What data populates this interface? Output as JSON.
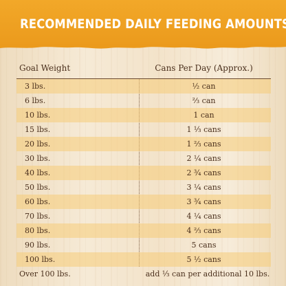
{
  "title": "RECOMMENDED DAILY FEEDING AMOUNTS:",
  "table": {
    "headers": [
      "Goal Weight",
      "Cans Per Day (Approx.)"
    ],
    "rows": [
      {
        "weight": "3 lbs.",
        "cans": "½ can"
      },
      {
        "weight": "6 lbs.",
        "cans": "⅔ can"
      },
      {
        "weight": "10 lbs.",
        "cans": "1 can"
      },
      {
        "weight": "15 lbs.",
        "cans": "1 ⅓ cans"
      },
      {
        "weight": "20 lbs.",
        "cans": "1 ⅔ cans"
      },
      {
        "weight": "30 lbs.",
        "cans": "2 ¼ cans"
      },
      {
        "weight": "40 lbs.",
        "cans": "2 ¾ cans"
      },
      {
        "weight": "50 lbs.",
        "cans": "3 ¼ cans"
      },
      {
        "weight": "60 lbs.",
        "cans": "3 ¾ cans"
      },
      {
        "weight": "70 lbs.",
        "cans": "4 ¼ cans"
      },
      {
        "weight": "80 lbs.",
        "cans": "4 ⅔ cans"
      },
      {
        "weight": "90 lbs.",
        "cans": "5 cans"
      },
      {
        "weight": "100 lbs.",
        "cans": "5 ½ cans"
      },
      {
        "weight": "Over 100 lbs.",
        "cans": "add ⅓ can per additional 10 lbs."
      }
    ]
  },
  "colors": {
    "banner": "#ef9f22",
    "text": "#4a2f1c",
    "row_shade": "#f6cc78",
    "background": "#f0e0c6"
  }
}
